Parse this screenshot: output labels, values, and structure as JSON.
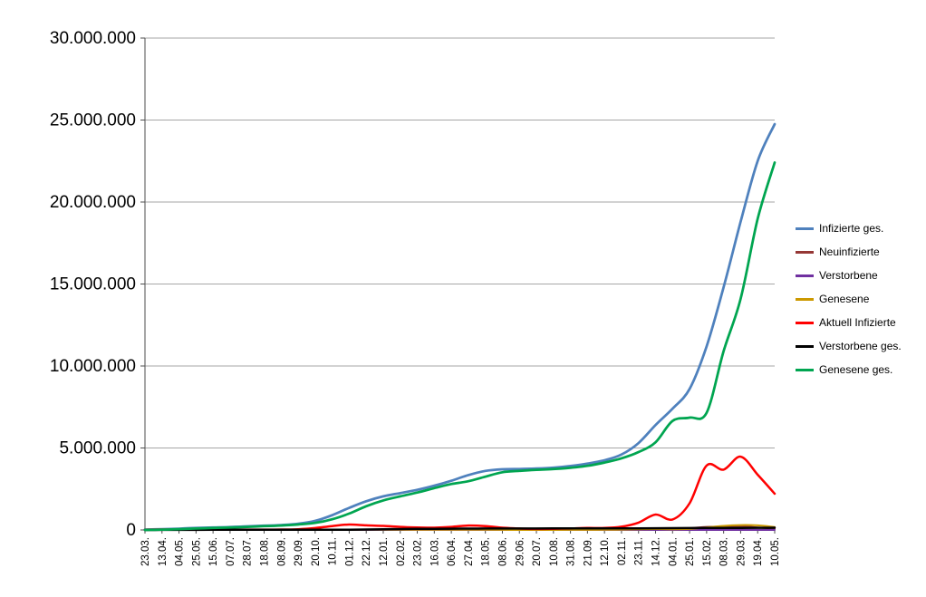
{
  "window": {
    "background": "#ffffff"
  },
  "chart_data": {
    "type": "line",
    "title": "",
    "x_labels": [
      "23.03.",
      "13.04.",
      "04.05.",
      "25.05.",
      "15.06.",
      "07.07.",
      "28.07.",
      "18.08.",
      "08.09.",
      "29.09.",
      "20.10.",
      "10.11.",
      "01.12.",
      "22.12.",
      "12.01.",
      "02.02.",
      "23.02.",
      "16.03.",
      "06.04.",
      "27.04.",
      "18.05.",
      "08.06.",
      "29.06.",
      "20.07.",
      "10.08.",
      "31.08.",
      "21.09.",
      "12.10.",
      "02.11.",
      "23.11.",
      "14.12.",
      "04.01.",
      "25.01.",
      "15.02.",
      "08.03.",
      "29.03.",
      "19.04.",
      "10.05."
    ],
    "y_ticks": [
      {
        "value": 0,
        "label": "0"
      },
      {
        "value": 5000000,
        "label": "5.000.000"
      },
      {
        "value": 10000000,
        "label": "10.000.000"
      },
      {
        "value": 15000000,
        "label": "15.000.000"
      },
      {
        "value": 20000000,
        "label": "20.000.000"
      },
      {
        "value": 25000000,
        "label": "25.000.000"
      },
      {
        "value": 30000000,
        "label": "30.000.000"
      }
    ],
    "ylim": [
      0,
      30000000
    ],
    "grid": true,
    "legend_position": "right",
    "style": {
      "grid_color": "#a6a6a6",
      "axis_color": "#4d4d4d",
      "label_color": "#000000",
      "background": "#ffffff"
    },
    "series": [
      {
        "name": "Infizierte ges.",
        "color": "#4f81bd",
        "width": 2.75,
        "values": [
          20000,
          50000,
          80000,
          120000,
          150000,
          180000,
          220000,
          260000,
          300000,
          380000,
          550000,
          900000,
          1350000,
          1750000,
          2050000,
          2250000,
          2450000,
          2700000,
          3000000,
          3350000,
          3600000,
          3700000,
          3720000,
          3750000,
          3800000,
          3900000,
          4050000,
          4250000,
          4600000,
          5300000,
          6400000,
          7400000,
          8600000,
          11200000,
          14800000,
          18800000,
          22500000,
          24750000
        ]
      },
      {
        "name": "Neuinfizierte",
        "color": "#953735",
        "width": 2,
        "values": [
          5000,
          4000,
          1500,
          700,
          500,
          400,
          600,
          1200,
          1800,
          2500,
          6000,
          18000,
          20000,
          25000,
          15000,
          9000,
          8000,
          17000,
          22000,
          18000,
          8000,
          2000,
          1000,
          1500,
          4000,
          8000,
          8000,
          12000,
          35000,
          60000,
          50000,
          40000,
          110000,
          190000,
          210000,
          250000,
          150000,
          80000
        ]
      },
      {
        "name": "Verstorbene",
        "color": "#7030a0",
        "width": 2,
        "values": [
          100,
          200,
          150,
          100,
          50,
          30,
          20,
          20,
          20,
          30,
          50,
          150,
          400,
          700,
          900,
          700,
          400,
          250,
          250,
          300,
          250,
          150,
          80,
          40,
          30,
          60,
          80,
          100,
          150,
          250,
          400,
          350,
          200,
          150,
          200,
          250,
          250,
          150
        ]
      },
      {
        "name": "Genesene",
        "color": "#cc9900",
        "width": 2,
        "values": [
          500,
          3000,
          3000,
          2000,
          1000,
          700,
          700,
          1000,
          1500,
          2000,
          4000,
          12000,
          18000,
          22000,
          18000,
          12000,
          9000,
          12000,
          18000,
          17000,
          12000,
          5000,
          2000,
          1500,
          2500,
          5000,
          7000,
          9000,
          20000,
          40000,
          55000,
          45000,
          60000,
          150000,
          250000,
          300000,
          280000,
          180000
        ]
      },
      {
        "name": "Aktuell Infizierte",
        "color": "#ff0000",
        "width": 2.5,
        "values": [
          18000,
          30000,
          30000,
          30000,
          30000,
          25000,
          20000,
          20000,
          25000,
          45000,
          115000,
          240000,
          330000,
          280000,
          250000,
          190000,
          150000,
          140000,
          190000,
          270000,
          240000,
          140000,
          90000,
          60000,
          70000,
          90000,
          120000,
          120000,
          200000,
          450000,
          940000,
          640000,
          1630000,
          3930000,
          3680000,
          4470000,
          3370000,
          2210000
        ]
      },
      {
        "name": "Verstorbene ges.",
        "color": "#000000",
        "width": 2.5,
        "values": [
          500,
          3000,
          6000,
          8000,
          8800,
          9000,
          9100,
          9200,
          9300,
          9500,
          10000,
          11000,
          17000,
          27000,
          42000,
          57000,
          68000,
          74000,
          77000,
          82000,
          86000,
          89000,
          90000,
          91000,
          92000,
          92500,
          93000,
          94500,
          96500,
          100000,
          106000,
          112000,
          117000,
          121000,
          124000,
          128000,
          132000,
          136000
        ]
      },
      {
        "name": "Genesene ges.",
        "color": "#00a550",
        "width": 2.75,
        "values": [
          2000,
          20000,
          50000,
          90000,
          120000,
          150000,
          190000,
          230000,
          270000,
          330000,
          430000,
          650000,
          1000000,
          1450000,
          1800000,
          2050000,
          2280000,
          2550000,
          2800000,
          2970000,
          3250000,
          3520000,
          3600000,
          3670000,
          3710000,
          3790000,
          3910000,
          4110000,
          4370000,
          4750000,
          5350000,
          6650000,
          6850000,
          7150000,
          10900000,
          14100000,
          18970000,
          22410000
        ]
      }
    ]
  }
}
